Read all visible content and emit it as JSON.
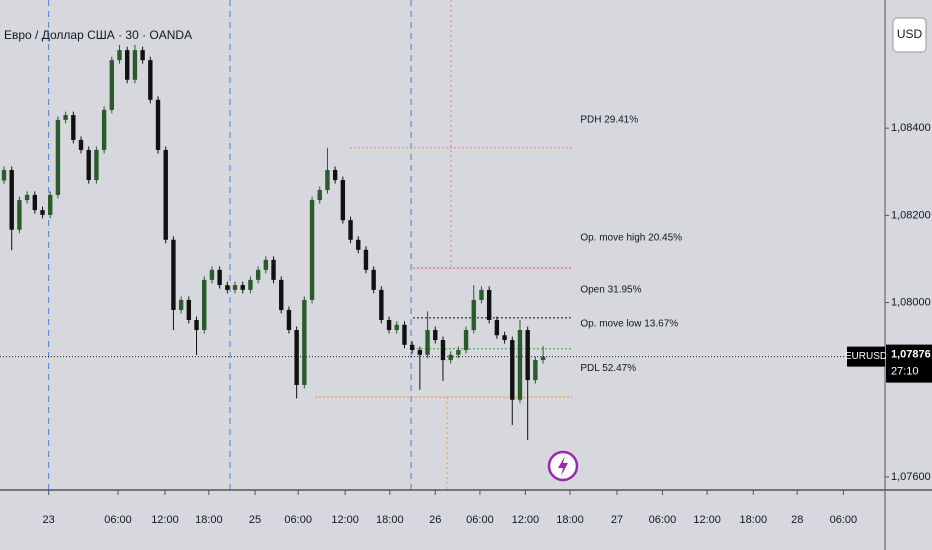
{
  "chart_data": {
    "type": "candlestick",
    "title": "Евро / Доллар США · 30 · OANDA",
    "currency": "USD",
    "symbol": "EURUSD",
    "countdown": "27:10",
    "up_color": "#2b5a2b",
    "down_color": "#111111",
    "xlim": [
      -0.52,
      114.4
    ],
    "ylim": [
      1.0757,
      1.08694
    ],
    "yticks": [
      {
        "value": 1.084,
        "label": "1,08400"
      },
      {
        "value": 1.082,
        "label": "1,08200"
      },
      {
        "value": 1.08,
        "label": "1,08000"
      },
      {
        "value": 1.076,
        "label": "1,07600"
      }
    ],
    "xticks": [
      {
        "value": 5.8,
        "label": "23"
      },
      {
        "value": 14.8,
        "label": "06:00"
      },
      {
        "value": 20.9,
        "label": "12:00"
      },
      {
        "value": 26.6,
        "label": "18:00"
      },
      {
        "value": 32.6,
        "label": "25"
      },
      {
        "value": 38.2,
        "label": "06:00"
      },
      {
        "value": 44.3,
        "label": "12:00"
      },
      {
        "value": 50.1,
        "label": "18:00"
      },
      {
        "value": 56.0,
        "label": "26"
      },
      {
        "value": 61.8,
        "label": "06:00"
      },
      {
        "value": 67.7,
        "label": "12:00"
      },
      {
        "value": 73.5,
        "label": "18:00"
      },
      {
        "value": 79.6,
        "label": "27"
      },
      {
        "value": 85.5,
        "label": "06:00"
      },
      {
        "value": 91.3,
        "label": "12:00"
      },
      {
        "value": 97.3,
        "label": "18:00"
      },
      {
        "value": 103.0,
        "label": "28"
      },
      {
        "value": 109.0,
        "label": "06:00"
      }
    ],
    "session_lines": [
      5.8,
      29.35,
      52.86
    ],
    "current_price": {
      "value": 1.07876,
      "label": "1,07876"
    },
    "levels": [
      {
        "label": "PDH 29.41%",
        "value": 1.08355,
        "color": "#f0a020",
        "from": 44.9,
        "to": 73.8
      },
      {
        "label": "Op. move high  20.45%",
        "value": 1.08079,
        "color": "#f06060",
        "from": 53.1,
        "to": 73.8
      },
      {
        "label": "Open 31.95%",
        "value": 1.07965,
        "color": "#222222",
        "from": 53.1,
        "to": 73.8
      },
      {
        "label": "Op. move low  13.67%",
        "value": 1.07894,
        "color": "#4caf50",
        "from": 53.1,
        "to": 73.8
      },
      {
        "label": "PDL 52.47%",
        "value": 1.07783,
        "color": "#f0a020",
        "from": 40.4,
        "to": 73.8
      }
    ],
    "open": [
      1.0828,
      1.08304,
      1.08167,
      1.08235,
      1.08247,
      1.08212,
      1.08201,
      1.08247,
      1.08419,
      1.0843,
      1.08373,
      1.0835,
      1.08281,
      1.0835,
      1.08442,
      1.08556,
      1.08579,
      1.08511,
      1.08579,
      1.08556,
      1.08465,
      1.0835,
      1.08144,
      1.07983,
      1.08006,
      1.0796,
      1.07937,
      1.08052,
      1.08075,
      1.0804,
      1.08029,
      1.0804,
      1.08029,
      1.08052,
      1.08075,
      1.08098,
      1.08052,
      1.07983,
      1.07937,
      1.07811,
      1.08006,
      1.08235,
      1.08258,
      1.08304,
      1.08281,
      1.08189,
      1.08144,
      1.08121,
      1.08075,
      1.08029,
      1.0796,
      1.07937,
      1.07949,
      1.07903,
      1.07891,
      1.0788,
      1.07937,
      1.07914,
      1.07868,
      1.0788,
      1.07891,
      1.07937,
      1.08006,
      1.08029,
      1.0796,
      1.07925,
      1.07914,
      1.07777,
      1.07937,
      1.07822,
      1.07868
    ],
    "high": [
      1.08312,
      1.08312,
      1.08243,
      1.08255,
      1.08255,
      1.0822,
      1.08255,
      1.08427,
      1.08438,
      1.08438,
      1.08381,
      1.08358,
      1.08358,
      1.0845,
      1.08564,
      1.08591,
      1.08587,
      1.08591,
      1.08587,
      1.08564,
      1.08473,
      1.08358,
      1.08152,
      1.08014,
      1.08014,
      1.07968,
      1.0806,
      1.08083,
      1.08083,
      1.08048,
      1.08048,
      1.08048,
      1.0806,
      1.08083,
      1.08106,
      1.08106,
      1.0806,
      1.07991,
      1.07945,
      1.08014,
      1.08243,
      1.08266,
      1.08355,
      1.08312,
      1.08289,
      1.08197,
      1.08152,
      1.08129,
      1.08083,
      1.08037,
      1.07968,
      1.07957,
      1.07957,
      1.07911,
      1.07899,
      1.0798,
      1.07945,
      1.07922,
      1.07888,
      1.07899,
      1.07945,
      1.0804,
      1.08037,
      1.08037,
      1.07968,
      1.07933,
      1.07922,
      1.0796,
      1.07945,
      1.07876,
      1.079
    ],
    "low": [
      1.08272,
      1.0812,
      1.08159,
      1.08227,
      1.08204,
      1.08193,
      1.08193,
      1.08239,
      1.08411,
      1.08365,
      1.08342,
      1.08273,
      1.08273,
      1.08342,
      1.08434,
      1.08548,
      1.08503,
      1.08503,
      1.08548,
      1.08457,
      1.08342,
      1.08136,
      1.07937,
      1.07975,
      1.07952,
      1.0788,
      1.07929,
      1.08044,
      1.08032,
      1.08021,
      1.08021,
      1.08021,
      1.08021,
      1.08044,
      1.08067,
      1.08044,
      1.07975,
      1.07929,
      1.0778,
      1.07803,
      1.07998,
      1.08227,
      1.0825,
      1.08273,
      1.08181,
      1.08136,
      1.08113,
      1.08067,
      1.08021,
      1.07952,
      1.07929,
      1.07929,
      1.07895,
      1.07883,
      1.078,
      1.07872,
      1.07906,
      1.0782,
      1.0786,
      1.07872,
      1.07883,
      1.07929,
      1.07998,
      1.07952,
      1.07917,
      1.07906,
      1.07719,
      1.07769,
      1.07685,
      1.07814,
      1.0786
    ],
    "close": [
      1.08304,
      1.08167,
      1.08235,
      1.08247,
      1.08212,
      1.08201,
      1.08247,
      1.08419,
      1.0843,
      1.08373,
      1.0835,
      1.08281,
      1.0835,
      1.08442,
      1.08556,
      1.08579,
      1.08511,
      1.08579,
      1.08556,
      1.08465,
      1.0835,
      1.08144,
      1.07983,
      1.08006,
      1.0796,
      1.07937,
      1.08052,
      1.08075,
      1.0804,
      1.08029,
      1.0804,
      1.08029,
      1.08052,
      1.08075,
      1.08098,
      1.08052,
      1.07983,
      1.07937,
      1.07811,
      1.08006,
      1.08235,
      1.08258,
      1.08304,
      1.08281,
      1.08189,
      1.08144,
      1.08121,
      1.08075,
      1.08029,
      1.0796,
      1.07937,
      1.07949,
      1.07903,
      1.07891,
      1.0788,
      1.07937,
      1.07914,
      1.07868,
      1.0788,
      1.07891,
      1.07937,
      1.08006,
      1.08029,
      1.0796,
      1.07925,
      1.07914,
      1.07777,
      1.07937,
      1.07822,
      1.07868,
      1.07876
    ]
  }
}
